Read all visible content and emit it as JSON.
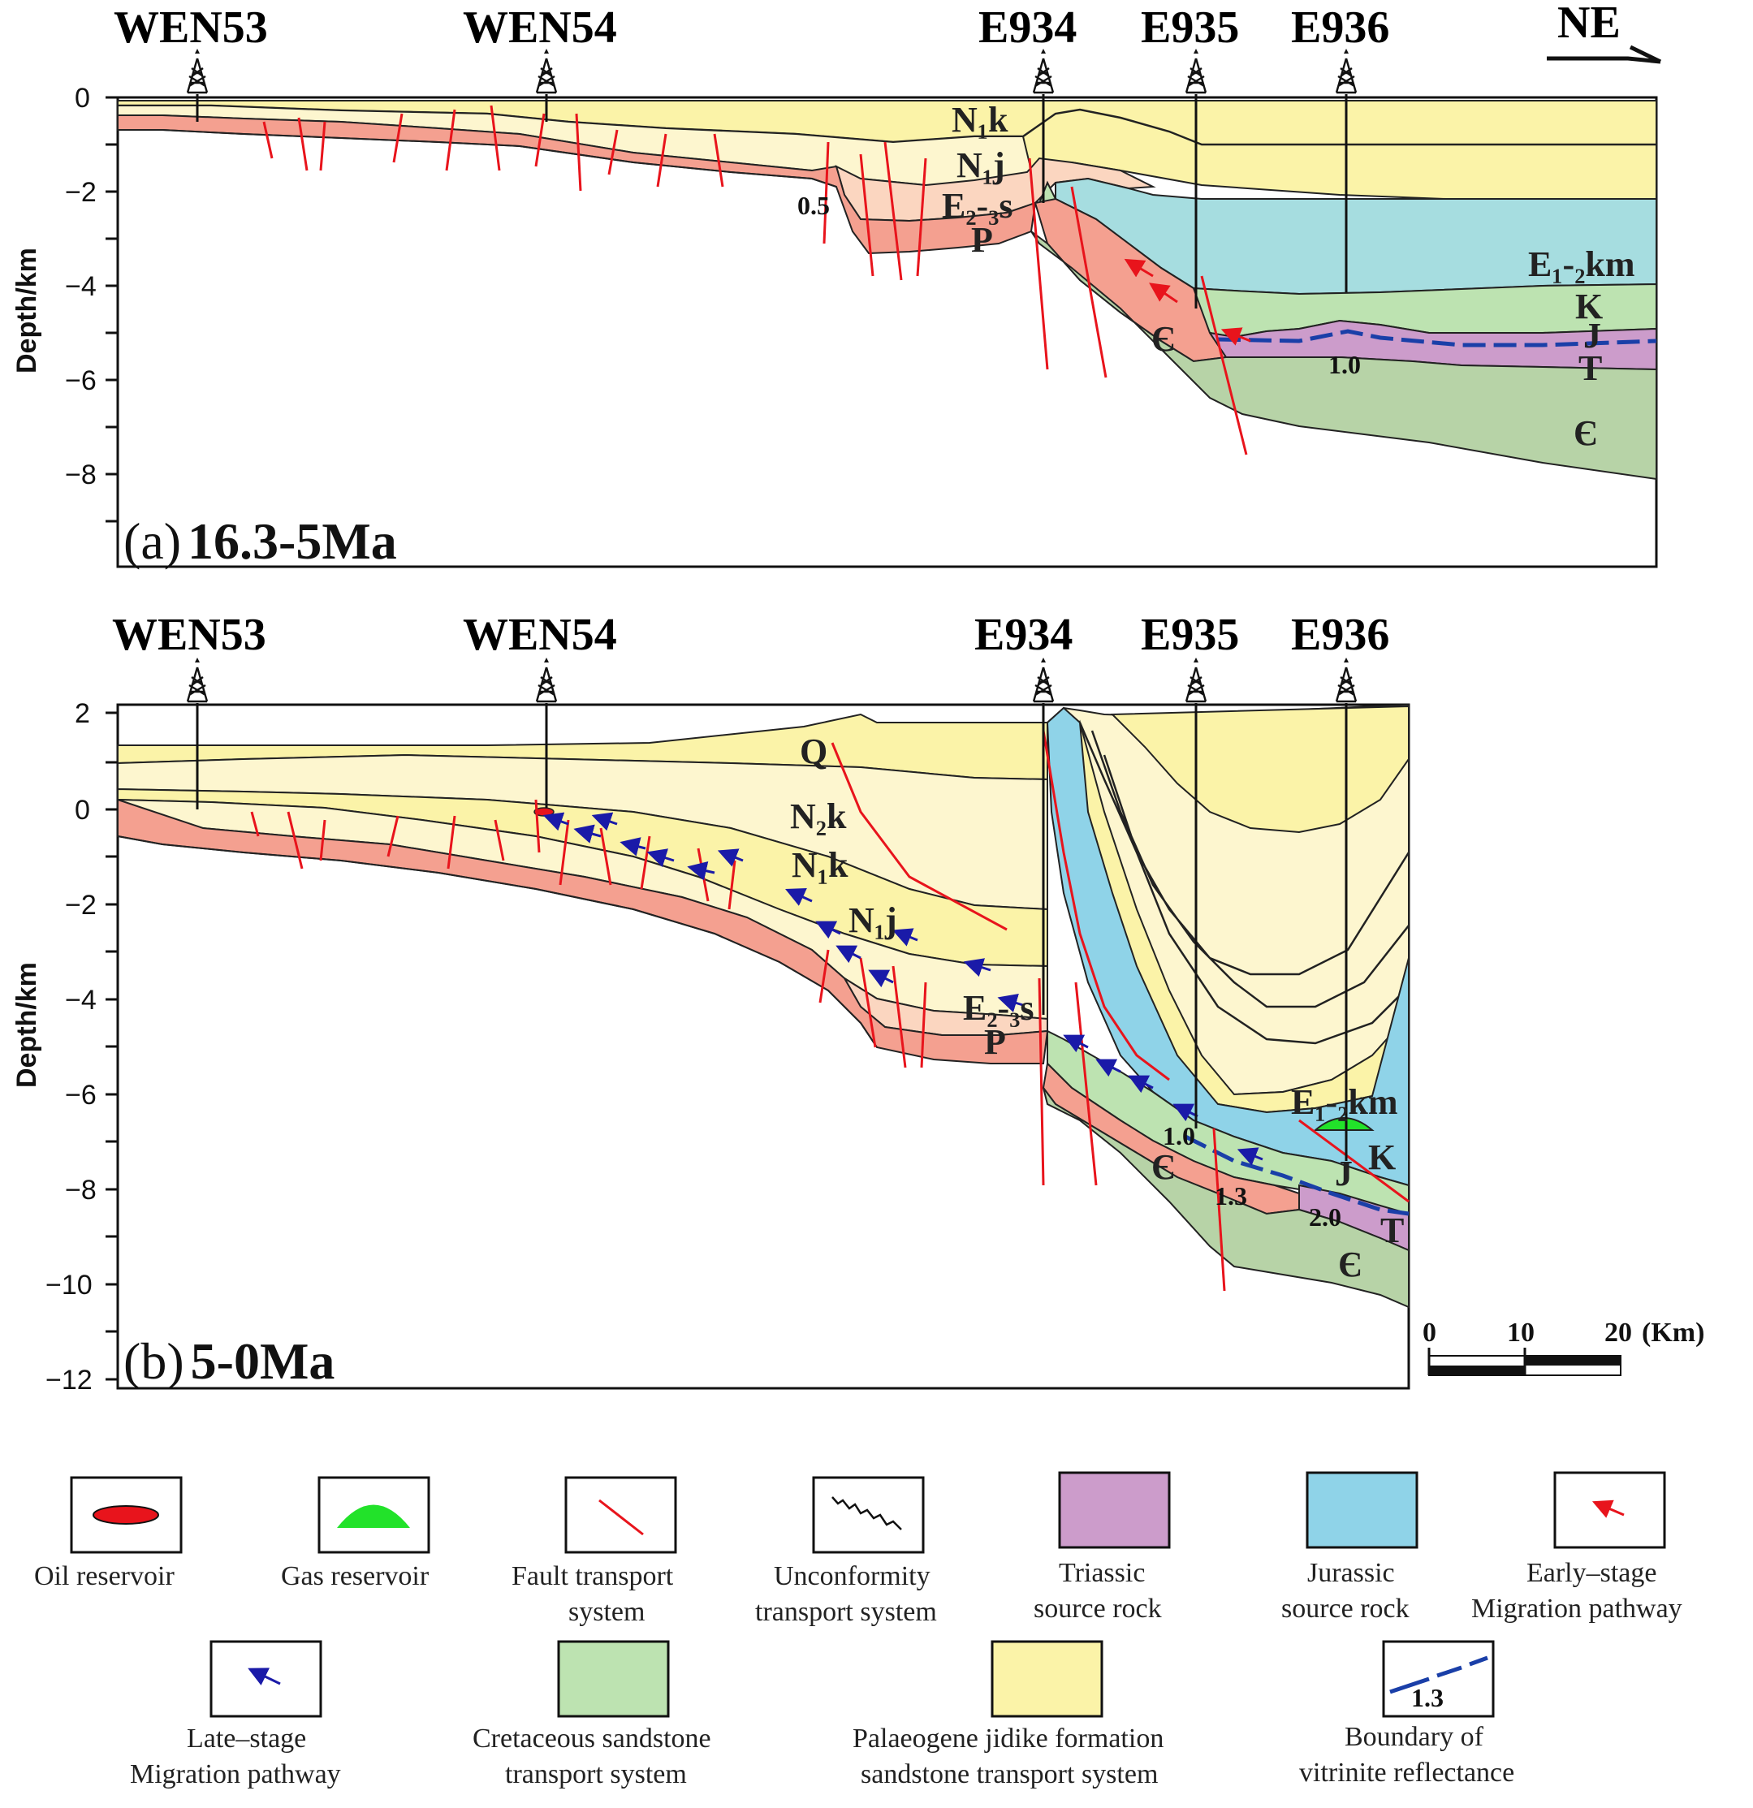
{
  "direction": "NE",
  "colors": {
    "palaeogene": "#fbf3a8",
    "palaeogene_light": "#fdf6cf",
    "cretaceous": "#bde3b1",
    "jurassic": "#8fd3e8",
    "triassic": "#cc9ccb",
    "salmon": "#f4a090",
    "peach": "#fbd6c0",
    "cambrian": "#b7d3a7",
    "fault": "#e8141c",
    "late_arrow": "#1a1aa8",
    "oil": "#e8141c",
    "gas": "#22e22a"
  },
  "panel_a": {
    "label_prefix": "(a)",
    "label_time": "16.3-5Ma",
    "y_axis_label": "Depth/km",
    "y_ticks": [
      "0",
      "−2",
      "−4",
      "−6",
      "−8"
    ],
    "wells": [
      "WEN53",
      "WEN54",
      "E934",
      "E935",
      "E936"
    ],
    "formations": {
      "n1k": "N₁k",
      "n1j": "N₁j",
      "e23s": "E₂-₃s",
      "p": "P",
      "e12km": "E₁-₂km",
      "k": "K",
      "j": "J",
      "t": "T",
      "cam1": "Є",
      "cam2": "Є"
    },
    "ro_labels": [
      "0.5",
      "1.0"
    ]
  },
  "panel_b": {
    "label_prefix": "(b)",
    "label_time": "5-0Ma",
    "y_axis_label": "Depth/km",
    "y_ticks": [
      "2",
      "0",
      "−2",
      "−4",
      "−6",
      "−8",
      "−10",
      "−12"
    ],
    "wells": [
      "WEN53",
      "WEN54",
      "E934",
      "E935",
      "E936"
    ],
    "formations": {
      "q": "Q",
      "n2k": "N₂k",
      "n1k": "N₁k",
      "n1j": "N₁j",
      "e23s": "E₂-₃s",
      "p": "P",
      "e12km": "E₁-₂km",
      "k": "K",
      "j": "J",
      "t": "T",
      "cam1": "Є",
      "cam2": "Є"
    },
    "ro_labels": [
      "1.0",
      "1.3",
      "2.0"
    ]
  },
  "scale_bar": {
    "labels": [
      "0",
      "10",
      "20"
    ],
    "unit": "(Km)"
  },
  "legend": [
    {
      "key": "oil",
      "line1": "Oil reservoir",
      "line2": ""
    },
    {
      "key": "gas",
      "line1": "Gas reservoir",
      "line2": ""
    },
    {
      "key": "fault",
      "line1": "Fault transport",
      "line2": "system"
    },
    {
      "key": "unconformity",
      "line1": "Unconformity",
      "line2": "transport system"
    },
    {
      "key": "triassic",
      "line1": "Triassic",
      "line2": "source rock"
    },
    {
      "key": "jurassic",
      "line1": "Jurassic",
      "line2": "source rock"
    },
    {
      "key": "early",
      "line1": "Early–stage",
      "line2": "Migration pathway"
    },
    {
      "key": "late",
      "line1": "Late–stage",
      "line2": "Migration pathway"
    },
    {
      "key": "cretaceous",
      "line1": "Cretaceous sandstone",
      "line2": "transport system"
    },
    {
      "key": "palaeogene",
      "line1": "Palaeogene jidike formation",
      "line2": "sandstone transport system"
    },
    {
      "key": "ro",
      "line1": "Boundary of",
      "line2": "vitrinite reflectance",
      "sample": "1.3"
    }
  ]
}
